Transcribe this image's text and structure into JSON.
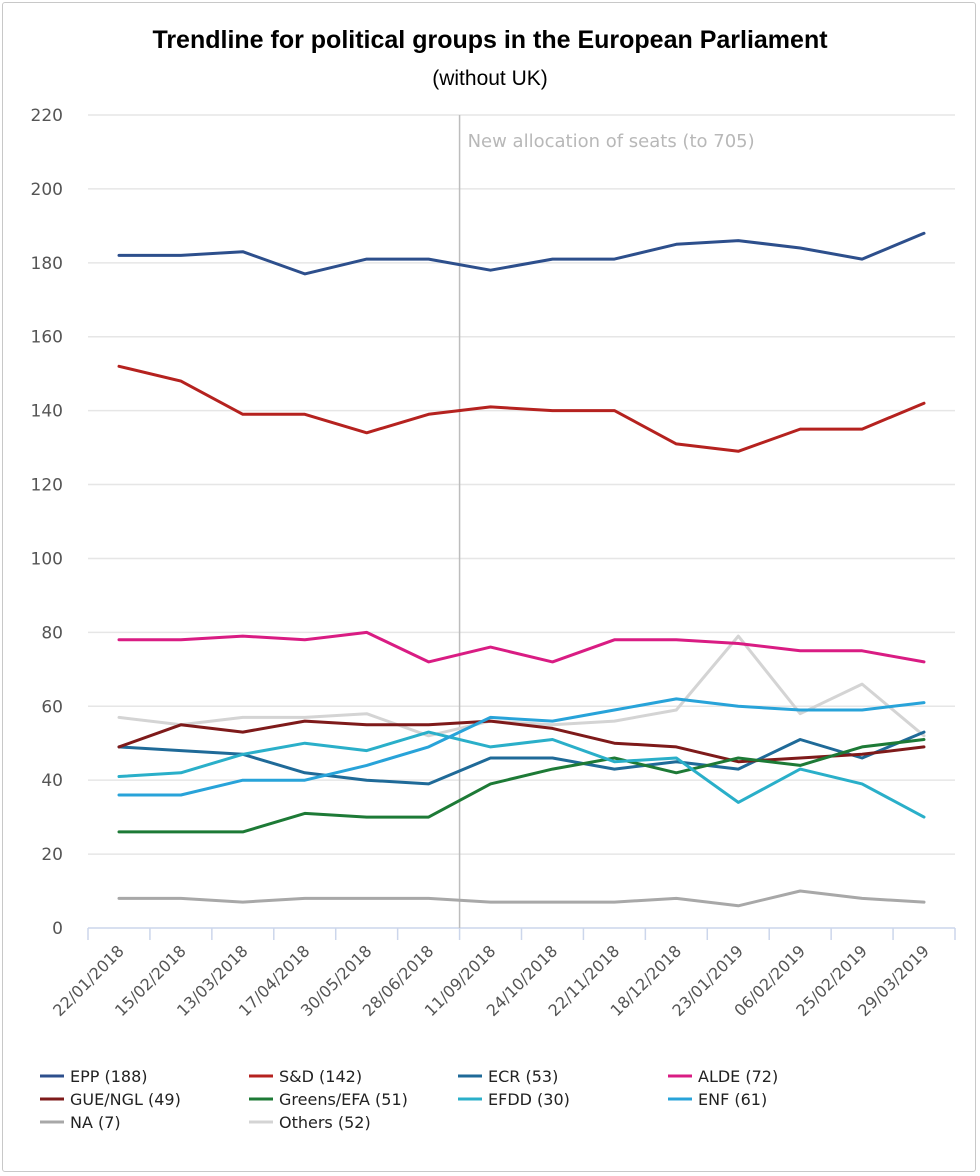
{
  "chart_data": {
    "type": "line",
    "title": "Trendline for political groups in the European Parliament",
    "subtitle": "(without UK)",
    "xlabel": "",
    "ylabel": "",
    "ylim": [
      0,
      220
    ],
    "yticks": [
      0,
      20,
      40,
      60,
      80,
      100,
      120,
      140,
      160,
      180,
      200,
      220
    ],
    "grid": true,
    "legend_position": "bottom",
    "categories": [
      "22/01/2018",
      "15/02/2018",
      "13/03/2018",
      "17/04/2018",
      "30/05/2018",
      "28/06/2018",
      "11/09/2018",
      "24/10/2018",
      "22/11/2018",
      "18/12/2018",
      "23/01/2019",
      "06/02/2019",
      "25/02/2019",
      "29/03/2019"
    ],
    "annotation": {
      "text": "New allocation of seats (to 705)",
      "at_category": "11/09/2018"
    },
    "series": [
      {
        "name": "Others (52)",
        "color": "#d4d4d4",
        "values": [
          57,
          55,
          57,
          57,
          58,
          52,
          56,
          55,
          56,
          59,
          79,
          58,
          66,
          52
        ]
      },
      {
        "name": "EPP (188)",
        "color": "#2d4f8c",
        "values": [
          182,
          182,
          183,
          177,
          181,
          181,
          178,
          181,
          181,
          185,
          186,
          184,
          181,
          188
        ]
      },
      {
        "name": "S&D (142)",
        "color": "#b5221f",
        "values": [
          152,
          148,
          139,
          139,
          134,
          139,
          141,
          140,
          140,
          131,
          129,
          135,
          135,
          142
        ]
      },
      {
        "name": "ECR (53)",
        "color": "#1f6a98",
        "values": [
          49,
          48,
          47,
          42,
          40,
          39,
          46,
          46,
          43,
          45,
          43,
          51,
          46,
          53
        ]
      },
      {
        "name": "ALDE (72)",
        "color": "#d91c83",
        "values": [
          78,
          78,
          79,
          78,
          80,
          72,
          76,
          72,
          78,
          78,
          77,
          75,
          75,
          72
        ]
      },
      {
        "name": "GUE/NGL (49)",
        "color": "#7e1a1a",
        "values": [
          49,
          55,
          53,
          56,
          55,
          55,
          56,
          54,
          50,
          49,
          45,
          46,
          47,
          49
        ]
      },
      {
        "name": "Greens/EFA (51)",
        "color": "#1d7a36",
        "values": [
          26,
          26,
          26,
          31,
          30,
          30,
          39,
          43,
          46,
          42,
          46,
          44,
          49,
          51
        ]
      },
      {
        "name": "EFDD (30)",
        "color": "#2aafc9",
        "values": [
          41,
          42,
          47,
          50,
          48,
          53,
          49,
          51,
          45,
          46,
          34,
          43,
          39,
          30
        ]
      },
      {
        "name": "ENF (61)",
        "color": "#28a3d9",
        "values": [
          36,
          36,
          40,
          40,
          44,
          49,
          57,
          56,
          59,
          62,
          60,
          59,
          59,
          61
        ]
      },
      {
        "name": "NA (7)",
        "color": "#a8a8a8",
        "values": [
          8,
          8,
          7,
          8,
          8,
          8,
          7,
          7,
          7,
          8,
          6,
          10,
          8,
          7
        ]
      }
    ],
    "legend": [
      "EPP (188)",
      "S&D (142)",
      "ECR (53)",
      "ALDE (72)",
      "GUE/NGL (49)",
      "Greens/EFA (51)",
      "EFDD (30)",
      "ENF (61)",
      "NA (7)",
      "Others (52)"
    ]
  }
}
